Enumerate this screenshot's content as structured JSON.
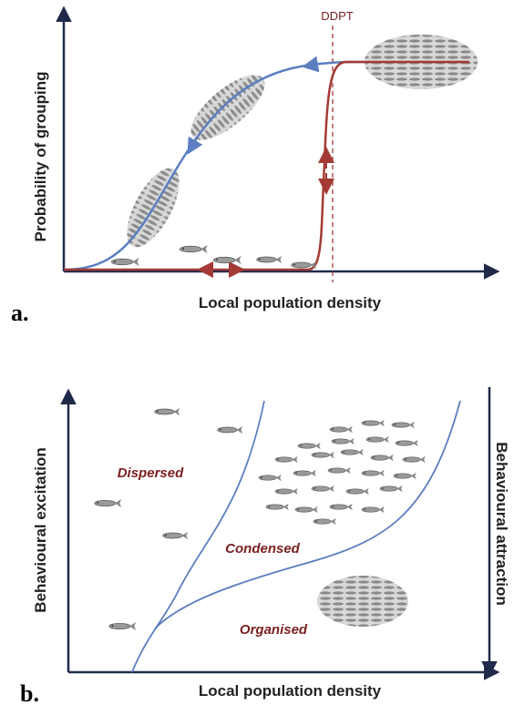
{
  "panel_a": {
    "label": "a.",
    "threshold_label": "DDPT",
    "y_axis_label": "Probability of grouping",
    "x_axis_label": "Local population density"
  },
  "panel_b": {
    "label": "b.",
    "y_axis_label": "Behavioural excitation",
    "right_axis_label": "Behavioural attraction",
    "x_axis_label": "Local population density",
    "regions": [
      "Dispersed",
      "Condensed",
      "Organised"
    ]
  }
}
